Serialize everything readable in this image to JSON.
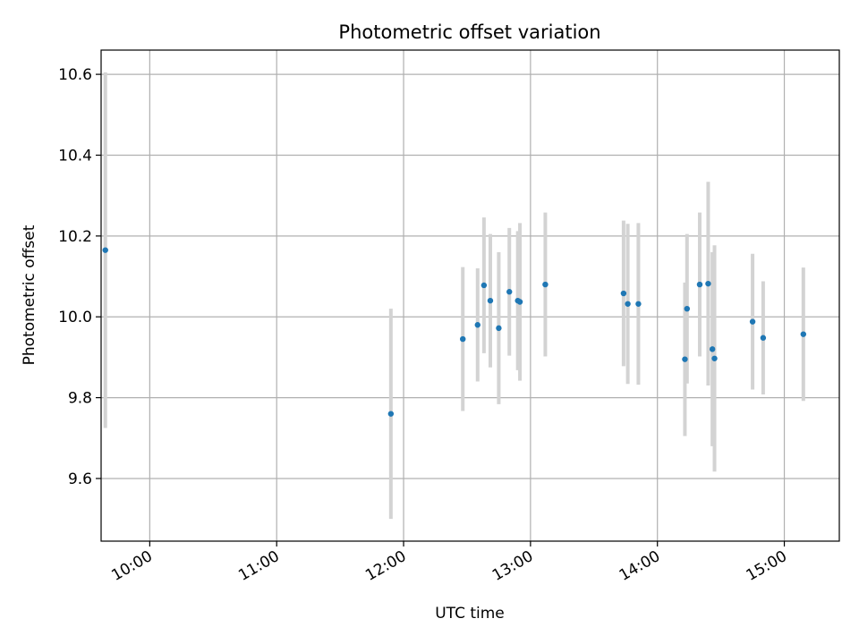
{
  "chart_data": {
    "type": "scatter",
    "title": "Photometric offset variation",
    "xlabel": "UTC time",
    "ylabel": "Photometric offset",
    "x_unit": "UTC clock time (HH:MM)",
    "xlim": [
      "09:37",
      "15:26"
    ],
    "ylim": [
      9.445,
      10.66
    ],
    "x_ticks": [
      "10:00",
      "11:00",
      "12:00",
      "13:00",
      "14:00",
      "15:00"
    ],
    "y_ticks": [
      9.6,
      9.8,
      10.0,
      10.2,
      10.4,
      10.6
    ],
    "y_tick_labels": [
      "9.6",
      "9.8",
      "10.0",
      "10.2",
      "10.4",
      "10.6"
    ],
    "grid": true,
    "colors": {
      "point": "#1f77b4",
      "errorbar": "#d3d3d3",
      "grid": "#b0b0b0",
      "axes": "#000000"
    },
    "series": [
      {
        "points": [
          {
            "x": "09:39",
            "y": 10.165,
            "err": 0.44
          },
          {
            "x": "11:54",
            "y": 9.76,
            "err": 0.26
          },
          {
            "x": "12:28",
            "y": 9.945,
            "err": 0.178
          },
          {
            "x": "12:35",
            "y": 9.98,
            "err": 0.14
          },
          {
            "x": "12:38",
            "y": 10.078,
            "err": 0.168
          },
          {
            "x": "12:41",
            "y": 10.04,
            "err": 0.165
          },
          {
            "x": "12:45",
            "y": 9.972,
            "err": 0.188
          },
          {
            "x": "12:50",
            "y": 10.062,
            "err": 0.158
          },
          {
            "x": "12:54",
            "y": 10.04,
            "err": 0.172
          },
          {
            "x": "12:55",
            "y": 10.037,
            "err": 0.195
          },
          {
            "x": "13:07",
            "y": 10.08,
            "err": 0.178
          },
          {
            "x": "13:44",
            "y": 10.058,
            "err": 0.18
          },
          {
            "x": "13:46",
            "y": 10.032,
            "err": 0.198
          },
          {
            "x": "13:51",
            "y": 10.032,
            "err": 0.2
          },
          {
            "x": "14:13",
            "y": 9.895,
            "err": 0.19
          },
          {
            "x": "14:14",
            "y": 10.02,
            "err": 0.185
          },
          {
            "x": "14:20",
            "y": 10.08,
            "err": 0.178
          },
          {
            "x": "14:24",
            "y": 10.082,
            "err": 0.252
          },
          {
            "x": "14:26",
            "y": 9.92,
            "err": 0.24
          },
          {
            "x": "14:27",
            "y": 9.897,
            "err": 0.28
          },
          {
            "x": "14:45",
            "y": 9.988,
            "err": 0.168
          },
          {
            "x": "14:50",
            "y": 9.948,
            "err": 0.14
          },
          {
            "x": "15:09",
            "y": 9.957,
            "err": 0.165
          }
        ]
      }
    ]
  }
}
